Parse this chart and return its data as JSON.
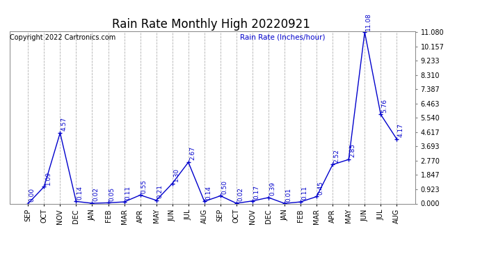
{
  "title": "Rain Rate Monthly High 20220921",
  "ylabel": "Rain Rate (Inches/hour)",
  "copyright": "Copyright 2022 Cartronics.com",
  "line_color": "#0000CC",
  "background_color": "#ffffff",
  "grid_color": "#b0b0b0",
  "categories": [
    "SEP",
    "OCT",
    "NOV",
    "DEC",
    "JAN",
    "FEB",
    "MAR",
    "APR",
    "MAY",
    "JUN",
    "JUL",
    "AUG",
    "SEP",
    "OCT",
    "NOV",
    "DEC",
    "JAN",
    "FEB",
    "MAR",
    "APR",
    "MAY",
    "JUN",
    "JUL",
    "AUG"
  ],
  "values": [
    0.0,
    1.09,
    4.57,
    0.14,
    0.02,
    0.05,
    0.11,
    0.55,
    0.21,
    1.3,
    2.67,
    0.14,
    0.5,
    0.02,
    0.17,
    0.39,
    0.01,
    0.11,
    0.45,
    2.52,
    2.85,
    11.08,
    5.76,
    4.17
  ],
  "ylim": [
    0.0,
    11.08
  ],
  "yticks": [
    0.0,
    0.923,
    1.847,
    2.77,
    3.693,
    4.617,
    5.54,
    6.463,
    7.387,
    8.31,
    9.233,
    10.157,
    11.08
  ],
  "title_fontsize": 12,
  "label_fontsize": 7,
  "annotation_fontsize": 6.5,
  "copyright_fontsize": 7,
  "ylabel_fontsize": 7.5
}
